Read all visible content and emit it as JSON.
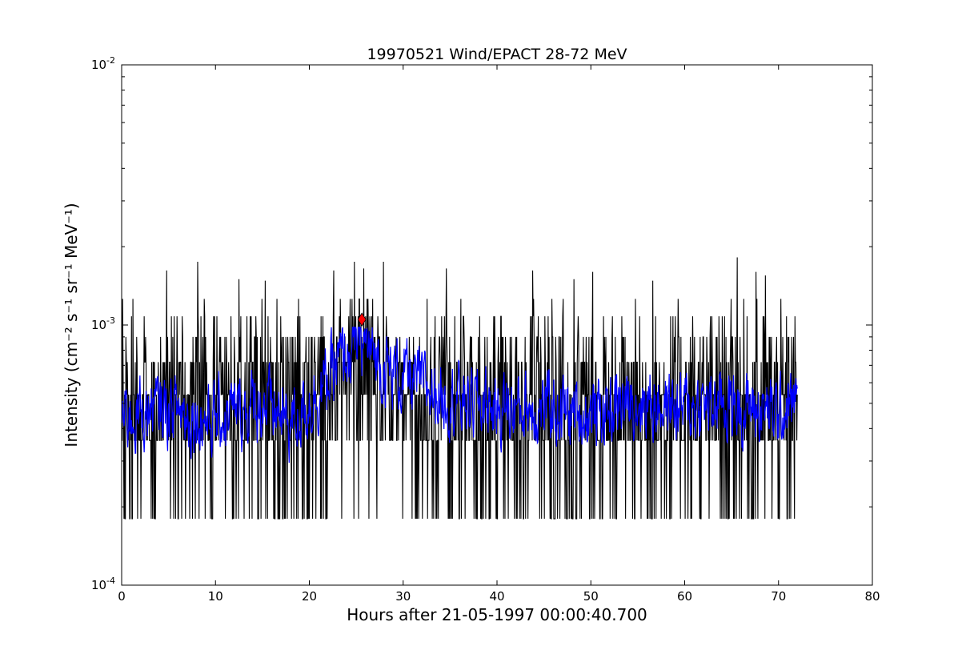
{
  "chart_data": {
    "type": "line",
    "title": "19970521 Wind/EPACT 28-72 MeV",
    "xlabel": "Hours after 21-05-1997 00:00:40.700",
    "ylabel": "Intensity (cm⁻² s⁻¹ sr⁻¹ MeV⁻¹)",
    "xlim": [
      0,
      80
    ],
    "ylim": [
      0.0001,
      0.01
    ],
    "yscale": "log",
    "grid": false,
    "x_ticks": [
      "0",
      "10",
      "20",
      "30",
      "40",
      "50",
      "60",
      "70",
      "80"
    ],
    "y_ticks": [
      {
        "base": "10",
        "exp": "-4"
      },
      {
        "base": "10",
        "exp": "-3"
      },
      {
        "base": "10",
        "exp": "-2"
      }
    ],
    "series": [
      {
        "color": "#000000",
        "x_range": [
          0,
          72
        ],
        "discrete_levels": [
          0.00018,
          0.00036,
          0.00054,
          0.00072,
          0.0009,
          0.00108,
          0.00126
        ],
        "spikes": [
          {
            "x": 1.2,
            "y": 0.00126
          },
          {
            "x": 4.8,
            "y": 0.00162
          },
          {
            "x": 8.1,
            "y": 0.00175
          },
          {
            "x": 12.5,
            "y": 0.0015
          },
          {
            "x": 15.3,
            "y": 0.00148
          },
          {
            "x": 22.6,
            "y": 0.00162
          },
          {
            "x": 24.8,
            "y": 0.00175
          },
          {
            "x": 25.8,
            "y": 0.00165
          },
          {
            "x": 27.9,
            "y": 0.00175
          },
          {
            "x": 34.6,
            "y": 0.00165
          },
          {
            "x": 43.8,
            "y": 0.00162
          },
          {
            "x": 48.2,
            "y": 0.0015
          },
          {
            "x": 50.2,
            "y": 0.0016
          },
          {
            "x": 56.6,
            "y": 0.00148
          },
          {
            "x": 65.6,
            "y": 0.00182
          },
          {
            "x": 67.6,
            "y": 0.0016
          },
          {
            "x": 68.6,
            "y": 0.00155
          }
        ]
      },
      {
        "color": "#0000ff",
        "x_range": [
          0,
          72
        ],
        "trend": [
          {
            "x": 0,
            "y": 0.00045
          },
          {
            "x": 5,
            "y": 0.00048
          },
          {
            "x": 10,
            "y": 0.00043
          },
          {
            "x": 15,
            "y": 0.0005
          },
          {
            "x": 18,
            "y": 0.00042
          },
          {
            "x": 21,
            "y": 0.00055
          },
          {
            "x": 23,
            "y": 0.0007
          },
          {
            "x": 25.5,
            "y": 0.00088
          },
          {
            "x": 28,
            "y": 0.00068
          },
          {
            "x": 32,
            "y": 0.00058
          },
          {
            "x": 36,
            "y": 0.00052
          },
          {
            "x": 40,
            "y": 0.00048
          },
          {
            "x": 45,
            "y": 0.00048
          },
          {
            "x": 50,
            "y": 0.00045
          },
          {
            "x": 55,
            "y": 0.00052
          },
          {
            "x": 60,
            "y": 0.00048
          },
          {
            "x": 65,
            "y": 0.0005
          },
          {
            "x": 70,
            "y": 0.00045
          },
          {
            "x": 72,
            "y": 0.00052
          }
        ]
      }
    ],
    "marker": {
      "x": 25.6,
      "y": 0.00105,
      "shape": "diamond",
      "color": "#ff0000"
    }
  }
}
